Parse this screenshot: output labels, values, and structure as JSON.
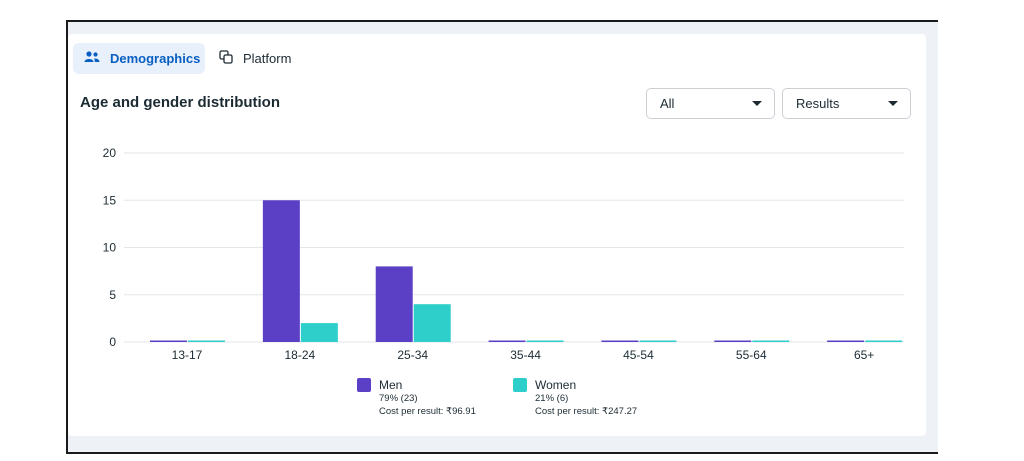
{
  "tabs": [
    {
      "label": "Demographics",
      "icon": "people-icon",
      "active": true
    },
    {
      "label": "Platform",
      "icon": "platform-icon",
      "active": false
    }
  ],
  "title": "Age and gender distribution",
  "filters": {
    "audience": "All",
    "metric": "Results"
  },
  "colors": {
    "men": "#5b3fc4",
    "women": "#2ecfca",
    "grid": "#e4e6eb",
    "accent": "#0a5fc2"
  },
  "chart_data": {
    "type": "bar",
    "title": "Age and gender distribution",
    "xlabel": "",
    "ylabel": "",
    "categories": [
      "13-17",
      "18-24",
      "25-34",
      "35-44",
      "45-54",
      "55-64",
      "65+"
    ],
    "series": [
      {
        "name": "Men",
        "values": [
          0,
          15,
          8,
          0,
          0,
          0,
          0
        ]
      },
      {
        "name": "Women",
        "values": [
          0,
          2,
          4,
          0,
          0,
          0,
          0
        ]
      }
    ],
    "ylim": [
      0,
      20
    ],
    "yticks": [
      0,
      5,
      10,
      15,
      20
    ],
    "grid": true,
    "legend": "bottom-center"
  },
  "legend": {
    "men": {
      "label": "Men",
      "share": "79% (23)",
      "cost": "Cost per result: ₹96.91"
    },
    "women": {
      "label": "Women",
      "share": "21% (6)",
      "cost": "Cost per result: ₹247.27"
    }
  }
}
